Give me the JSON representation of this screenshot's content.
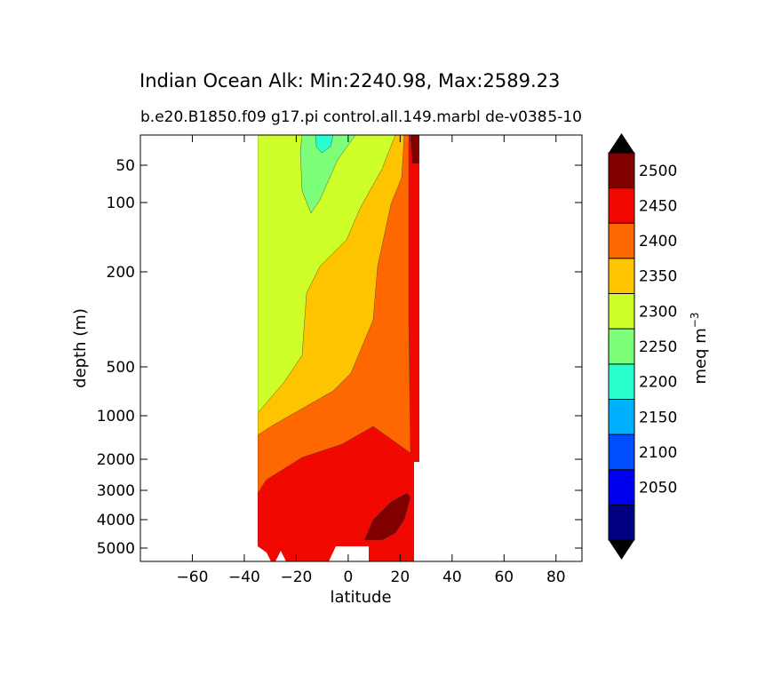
{
  "chart_data": {
    "type": "contourf",
    "title": "Indian Ocean Alk: Min:2240.98, Max:2589.23",
    "subtitle_left": "b.e20.B1850.f09 g17.pi control.all.149.marbl de-v038",
    "subtitle_right": "5-10",
    "xlabel": "latitude",
    "ylabel": "depth (m)",
    "x_ticks": [
      -60,
      -40,
      -20,
      0,
      20,
      40,
      60,
      80
    ],
    "x_tick_labels": [
      "−60",
      "−40",
      "−20",
      "0",
      "20",
      "40",
      "60",
      "80"
    ],
    "y_ticks": [
      50,
      100,
      200,
      500,
      1000,
      2000,
      3000,
      4000,
      5000
    ],
    "y_tick_labels": [
      "50",
      "100",
      "200",
      "500",
      "1000",
      "2000",
      "3000",
      "4000",
      "5000"
    ],
    "xlim": [
      -80,
      90
    ],
    "colorbar": {
      "label": "meq m",
      "label_superscript": "−3",
      "levels": [
        2000,
        2050,
        2100,
        2150,
        2200,
        2250,
        2300,
        2350,
        2400,
        2450,
        2500,
        2550
      ],
      "tick_values": [
        2050,
        2100,
        2150,
        2200,
        2250,
        2300,
        2350,
        2400,
        2450,
        2500
      ],
      "colors": [
        "#000080",
        "#0000f1",
        "#004dff",
        "#00b1ff",
        "#29ffce",
        "#7dff7a",
        "#ceff29",
        "#ffc400",
        "#ff6800",
        "#f10800",
        "#800000"
      ],
      "extend_colors": [
        "#000000",
        "#000000"
      ]
    },
    "fields": {
      "2300-2350": "upper water column south of 20, to ~1000 m at 35S",
      "2350-2400": "intermediate water, 2000 m at 35S to ~100 m at 20N",
      "2400-2450": "deep water above ~2000 m",
      "2450-2500": "bottom water below ~2000 m",
      "2500-2550": "deep pocket near 5-20N at 3000-5000 m",
      "2250-2300": "surface low near 10S-10N"
    }
  }
}
